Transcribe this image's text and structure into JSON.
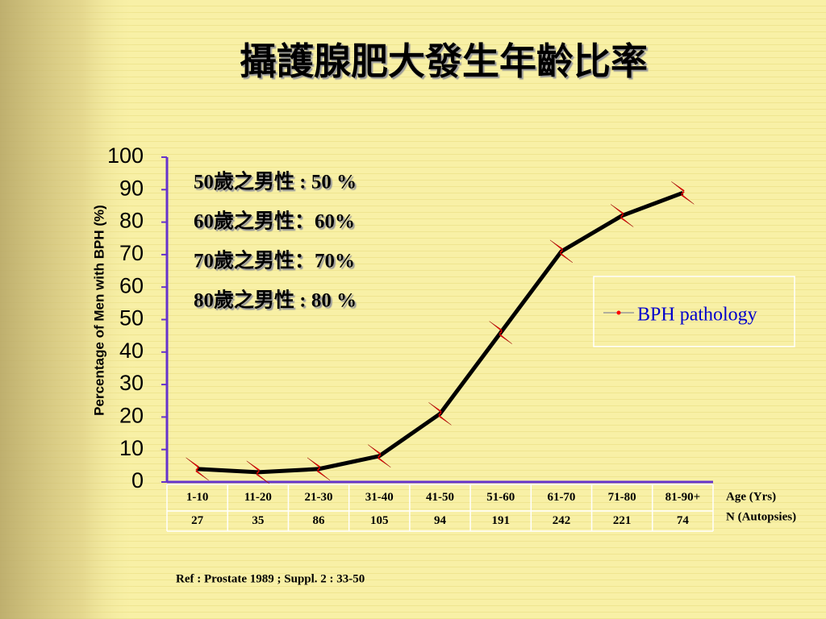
{
  "chart_data": {
    "type": "line",
    "title": "攝護腺肥大發生年齡比率",
    "y_label": "Percentage of Men with BPH (%)",
    "x_label": "Age (Yrs)",
    "n_label": "N (Autopsies)",
    "categories": [
      "1-10",
      "11-20",
      "21-30",
      "31-40",
      "41-50",
      "51-60",
      "61-70",
      "71-80",
      "81-90+"
    ],
    "n_values": [
      27,
      35,
      86,
      105,
      94,
      191,
      242,
      221,
      74
    ],
    "series": [
      {
        "name": "BPH pathology",
        "color": "#000000",
        "marker_color": "#ff0000",
        "values": [
          4,
          3,
          4,
          8,
          21,
          46,
          71,
          82,
          89
        ]
      }
    ],
    "ylim": [
      0,
      100
    ],
    "yticks": [
      0,
      10,
      20,
      30,
      40,
      50,
      60,
      70,
      80,
      90,
      100
    ],
    "annotations": [
      "50歲之男性 : 50 %",
      "60歲之男性：60%",
      "70歲之男性：70%",
      "80歲之男性 : 80 %"
    ],
    "reference": "Ref : Prostate 1989 ; Suppl. 2 : 33-50"
  }
}
